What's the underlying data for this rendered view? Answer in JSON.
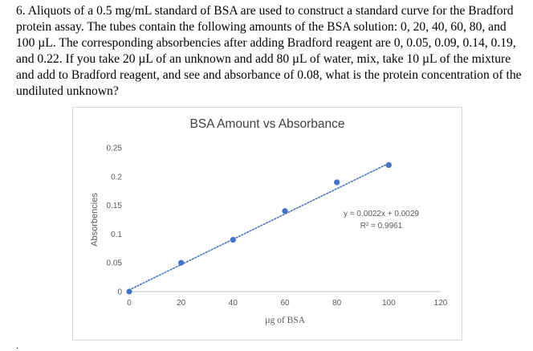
{
  "question": {
    "number": "6.",
    "text": "Aliquots of a 0.5 mg/mL standard of BSA are used to construct a standard curve for the Bradford protein assay. The tubes contain the following amounts of the BSA solution: 0, 20, 40, 60, 80, and 100 µL. The corresponding absorbencies after adding Bradford reagent are 0, 0.05, 0.09, 0.14, 0.19, and 0.22. If you take 20 µL of an unknown and add 80 µL of water, mix, take 10 µL of the mixture and add to Bradford reagent, and see and absorbance of 0.08, what is the protein concentration of the undiluted unknown?"
  },
  "footer": {
    "mark": "."
  },
  "chart_data": {
    "type": "scatter",
    "title": "BSA Amount vs Absorbance",
    "xlabel": "µg of BSA",
    "ylabel": "Absorbencies",
    "xlim": [
      0,
      120
    ],
    "ylim": [
      0,
      0.25
    ],
    "x_ticks": [
      "0",
      "20",
      "40",
      "60",
      "80",
      "100",
      "120"
    ],
    "y_ticks": [
      "0",
      "0.05",
      "0.1",
      "0.15",
      "0.2",
      "0.25"
    ],
    "series": [
      {
        "x": [
          0,
          20,
          40,
          60,
          80,
          100
        ],
        "y": [
          0,
          0.05,
          0.09,
          0.14,
          0.19,
          0.22
        ],
        "color": "#4472c4"
      }
    ],
    "trendline": {
      "type": "linear",
      "slope": 0.0022,
      "intercept": 0.0029,
      "x_range": [
        0,
        100
      ],
      "color": "#4472c4",
      "style": "dotted",
      "equation_label": "y = 0.0022x + 0.0029",
      "r2_label": "R² = 0.9961"
    },
    "grid": false,
    "legend": "none"
  }
}
